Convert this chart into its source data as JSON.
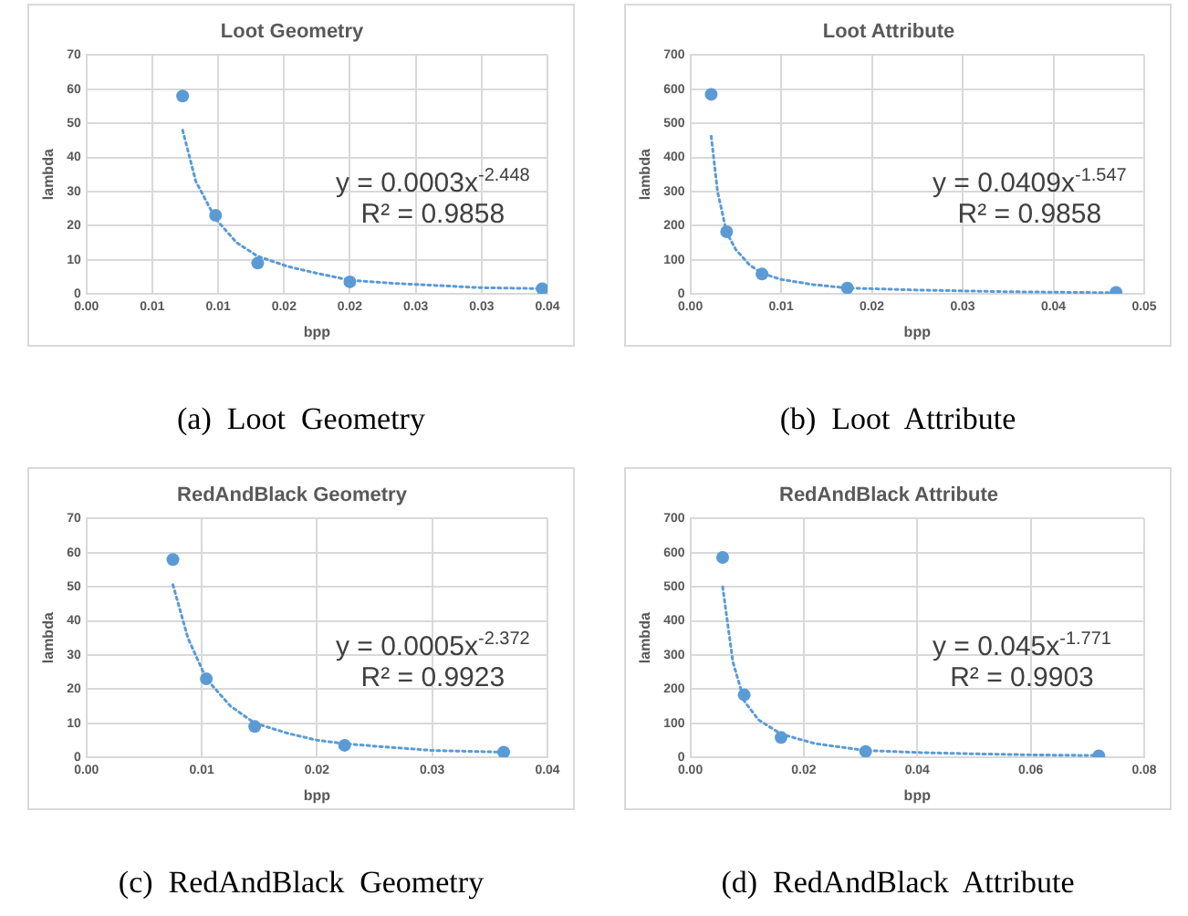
{
  "chart_data": [
    {
      "type": "scatter",
      "title": "Loot Geometry",
      "xlabel": "bpp",
      "ylabel": "lambda",
      "xlim": [
        0,
        0.035
      ],
      "ylim": [
        0,
        70
      ],
      "xticks": [
        {
          "value": 0,
          "label": "0.00"
        },
        {
          "value": 0.005,
          "label": "0.01"
        },
        {
          "value": 0.01,
          "label": "0.01"
        },
        {
          "value": 0.015,
          "label": "0.02"
        },
        {
          "value": 0.02,
          "label": "0.02"
        },
        {
          "value": 0.025,
          "label": "0.03"
        },
        {
          "value": 0.03,
          "label": "0.03"
        },
        {
          "value": 0.035,
          "label": "0.04"
        }
      ],
      "yticks": [
        0,
        10,
        20,
        30,
        40,
        50,
        60,
        70
      ],
      "grid": true,
      "legend": false,
      "marker": "circle",
      "series": [
        {
          "type": "scatter",
          "color": "#5b9bd5",
          "x": [
            0.0073,
            0.0098,
            0.013,
            0.02,
            0.0346
          ],
          "values": [
            58,
            23,
            9,
            3.5,
            1.5
          ]
        },
        {
          "type": "line",
          "color": "#5b9bd5",
          "line_style": "dotted",
          "marker": "none",
          "x": [
            0.0073,
            0.0083,
            0.0098,
            0.0114,
            0.013,
            0.0153,
            0.0175,
            0.02,
            0.0236,
            0.0263,
            0.0298,
            0.0346
          ],
          "values": [
            48,
            33,
            22,
            15,
            11,
            8,
            6,
            4,
            3,
            2.5,
            1.8,
            1.5
          ]
        }
      ],
      "annotations": [
        "y = 0.0003x$^{-2.448}$",
        "R² = 0.9858",
        "(a)  Loot  Geometry"
      ]
    },
    {
      "type": "scatter",
      "title": "Loot Attribute",
      "xlabel": "bpp",
      "ylabel": "lambda",
      "xlim": [
        0,
        0.05
      ],
      "ylim": [
        0,
        700
      ],
      "xticks": [
        {
          "value": 0,
          "label": "0.00"
        },
        {
          "value": 0.01,
          "label": "0.01"
        },
        {
          "value": 0.02,
          "label": "0.02"
        },
        {
          "value": 0.03,
          "label": "0.03"
        },
        {
          "value": 0.04,
          "label": "0.04"
        },
        {
          "value": 0.05,
          "label": "0.05"
        }
      ],
      "yticks": [
        0,
        100,
        200,
        300,
        400,
        500,
        600,
        700
      ],
      "grid": true,
      "legend": false,
      "marker": "circle",
      "series": [
        {
          "type": "scatter",
          "color": "#5b9bd5",
          "x": [
            0.0023,
            0.004,
            0.0079,
            0.0173,
            0.0469
          ],
          "values": [
            585,
            182,
            58,
            17,
            4
          ]
        },
        {
          "type": "line",
          "color": "#5b9bd5",
          "line_style": "dotted",
          "marker": "none",
          "x": [
            0.0023,
            0.003,
            0.004,
            0.005,
            0.0065,
            0.0079,
            0.01,
            0.0135,
            0.0173,
            0.025,
            0.035,
            0.0469
          ],
          "values": [
            462,
            300,
            180,
            130,
            85,
            60,
            42,
            27,
            17,
            11,
            6,
            3
          ]
        }
      ],
      "annotations": [
        "y = 0.0409x$^{-1.547}$",
        "R² = 0.9858",
        "(b)  Loot  Attribute"
      ]
    },
    {
      "type": "scatter",
      "title": "RedAndBlack Geometry",
      "xlabel": "bpp",
      "ylabel": "lambda",
      "xlim": [
        0,
        0.04
      ],
      "ylim": [
        0,
        70
      ],
      "xticks": [
        {
          "value": 0,
          "label": "0.00"
        },
        {
          "value": 0.01,
          "label": "0.01"
        },
        {
          "value": 0.02,
          "label": "0.02"
        },
        {
          "value": 0.03,
          "label": "0.03"
        },
        {
          "value": 0.04,
          "label": "0.04"
        }
      ],
      "yticks": [
        0,
        10,
        20,
        30,
        40,
        50,
        60,
        70
      ],
      "grid": true,
      "legend": false,
      "marker": "circle",
      "series": [
        {
          "type": "scatter",
          "color": "#5b9bd5",
          "x": [
            0.0075,
            0.0104,
            0.0146,
            0.0224,
            0.0362
          ],
          "values": [
            58,
            23,
            9,
            3.5,
            1.5
          ]
        },
        {
          "type": "line",
          "color": "#5b9bd5",
          "line_style": "dotted",
          "marker": "none",
          "x": [
            0.0075,
            0.0088,
            0.0104,
            0.0125,
            0.0146,
            0.0175,
            0.02,
            0.0224,
            0.026,
            0.03,
            0.0362
          ],
          "values": [
            50.6,
            35,
            23,
            15,
            10,
            7,
            5,
            4,
            3,
            2,
            1.5
          ]
        }
      ],
      "annotations": [
        "y = 0.0005x$^{-2.372}$",
        "R² = 0.9923",
        "(c)  RedAndBlack  Geometry"
      ]
    },
    {
      "type": "scatter",
      "title": "RedAndBlack Attribute",
      "xlabel": "bpp",
      "ylabel": "lambda",
      "xlim": [
        0,
        0.08
      ],
      "ylim": [
        0,
        700
      ],
      "xticks": [
        {
          "value": 0,
          "label": "0.00"
        },
        {
          "value": 0.02,
          "label": "0.02"
        },
        {
          "value": 0.04,
          "label": "0.04"
        },
        {
          "value": 0.06,
          "label": "0.06"
        },
        {
          "value": 0.08,
          "label": "0.08"
        }
      ],
      "yticks": [
        0,
        100,
        200,
        300,
        400,
        500,
        600,
        700
      ],
      "grid": true,
      "legend": false,
      "marker": "circle",
      "series": [
        {
          "type": "scatter",
          "color": "#5b9bd5",
          "x": [
            0.0057,
            0.0095,
            0.016,
            0.0309,
            0.072
          ],
          "values": [
            586,
            183,
            58,
            17,
            4
          ]
        },
        {
          "type": "line",
          "color": "#5b9bd5",
          "line_style": "dotted",
          "marker": "none",
          "x": [
            0.0057,
            0.0075,
            0.0095,
            0.012,
            0.016,
            0.022,
            0.0309,
            0.04,
            0.05,
            0.06,
            0.072
          ],
          "values": [
            500,
            280,
            165,
            110,
            68,
            40,
            20,
            14,
            10,
            7,
            5
          ]
        }
      ],
      "annotations": [
        "y = 0.045x$^{-1.771}$",
        "R² = 0.9903",
        "(d)  RedAndBlack  Attribute"
      ]
    }
  ]
}
